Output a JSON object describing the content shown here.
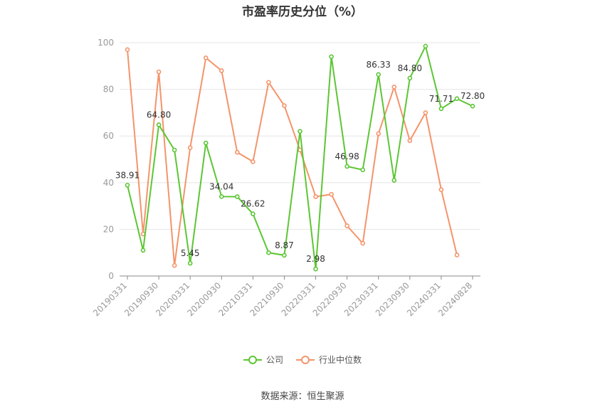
{
  "title": "市盈率历史分位（%）",
  "source": "数据来源：恒生聚源",
  "colors": {
    "company": "#5cc634",
    "industry": "#f4946b",
    "axis": "#999999",
    "grid": "#e6e6e6"
  },
  "legend": [
    {
      "label": "公司",
      "color": "#5cc634"
    },
    {
      "label": "行业中位数",
      "color": "#f4946b"
    }
  ],
  "chart_data": {
    "type": "line",
    "xlabel": "",
    "ylabel": "",
    "ylim": [
      0,
      100
    ],
    "yticks": [
      0,
      20,
      40,
      60,
      80,
      100
    ],
    "grid": true,
    "legend_position": "bottom",
    "x_tick_labels": [
      "20190331",
      "20190930",
      "20200331",
      "20200930",
      "20210331",
      "20210930",
      "20220331",
      "20220930",
      "20230331",
      "20230930",
      "20240331",
      "20240828"
    ],
    "x": [
      "20190331",
      "20190630",
      "20190930",
      "20191231",
      "20200331",
      "20200630",
      "20200930",
      "20201231",
      "20210331",
      "20210630",
      "20210930",
      "20211231",
      "20220331",
      "20220630",
      "20220930",
      "20221231",
      "20230331",
      "20230630",
      "20230930",
      "20231231",
      "20240331",
      "20240630",
      "20240828"
    ],
    "series": [
      {
        "name": "公司",
        "values": [
          38.91,
          11,
          64.8,
          54,
          5.45,
          57,
          34.04,
          34,
          26.62,
          10,
          8.87,
          62,
          2.98,
          94,
          46.98,
          45.5,
          86.33,
          41,
          84.8,
          98.5,
          71.71,
          76,
          72.8
        ],
        "labels": [
          "38.91",
          null,
          "64.80",
          null,
          "5.45",
          null,
          "34.04",
          null,
          "26.62",
          null,
          "8.87",
          null,
          "2.98",
          null,
          "46.98",
          null,
          "86.33",
          null,
          "84.80",
          null,
          "71.71",
          null,
          "72.80"
        ]
      },
      {
        "name": "行业中位数",
        "values": [
          97,
          18,
          87.5,
          4.5,
          55,
          93.5,
          88,
          53,
          49,
          83,
          73,
          54,
          34,
          35,
          21.5,
          14,
          61,
          81,
          58,
          70,
          37,
          9,
          null
        ]
      }
    ]
  }
}
